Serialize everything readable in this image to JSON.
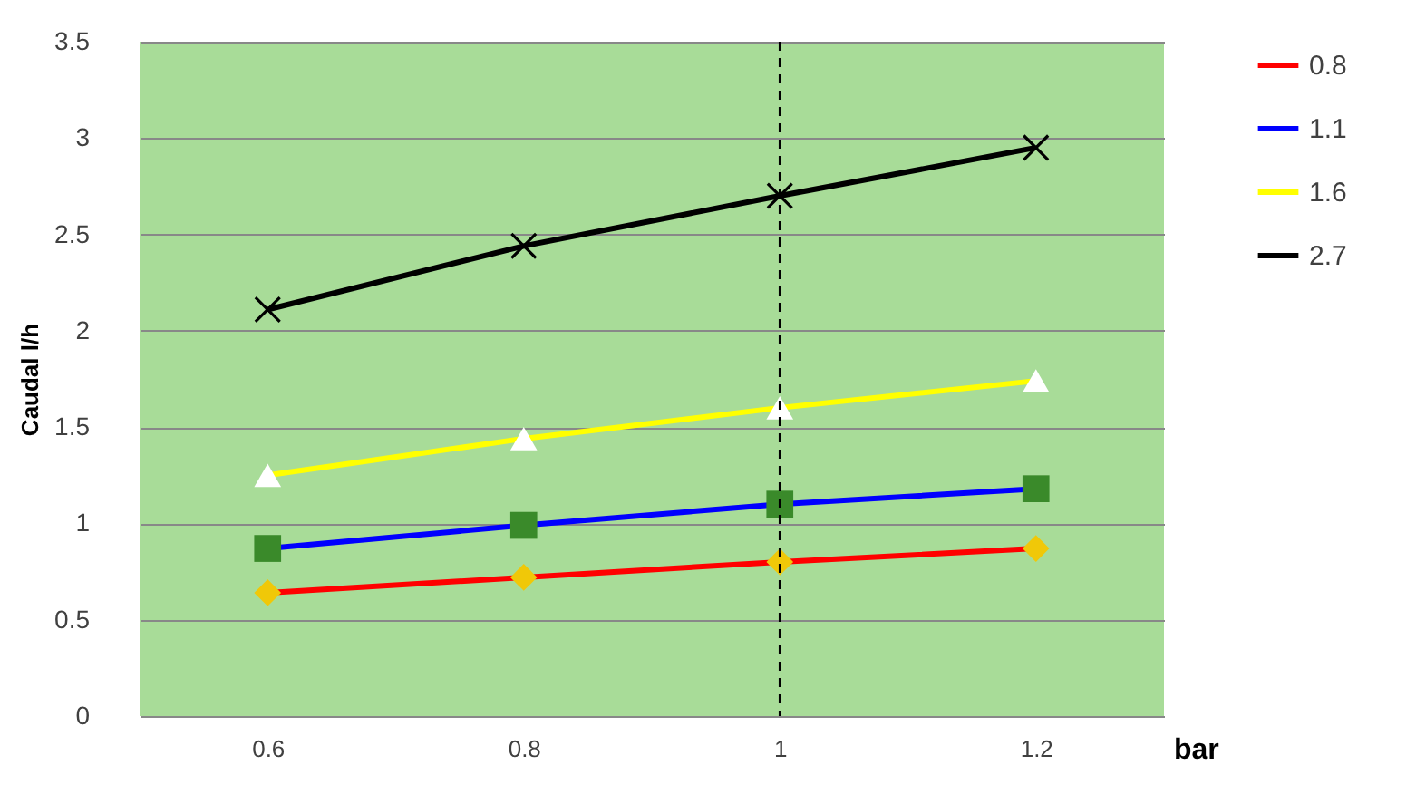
{
  "chart_data": {
    "type": "line",
    "xlabel": "bar",
    "ylabel": "Caudal l/h",
    "x": [
      0.6,
      0.8,
      1,
      1.2
    ],
    "series": [
      {
        "name": "0.8",
        "color": "#ff0000",
        "marker": "diamond",
        "colors": [
          "#f0c808",
          "#f0c808",
          "#f0c808",
          "#f0c808"
        ],
        "values": [
          0.64,
          0.72,
          0.8,
          0.87
        ]
      },
      {
        "name": "1.1",
        "color": "#0000ff",
        "marker": "square",
        "colors": [
          "#3a8a2a",
          "#3a8a2a",
          "#3a8a2a",
          "#3a8a2a"
        ],
        "values": [
          0.87,
          0.99,
          1.1,
          1.18
        ]
      },
      {
        "name": "1.6",
        "color": "#ffff00",
        "marker": "triangle",
        "colors": [
          "#ffffff",
          "#ffffff",
          "#ffffff",
          "#ffffff"
        ],
        "values": [
          1.25,
          1.44,
          1.6,
          1.74
        ]
      },
      {
        "name": "2.7",
        "color": "#000000",
        "marker": "cross",
        "colors": [
          "#000000",
          "#000000",
          "#000000",
          "#000000"
        ],
        "values": [
          2.11,
          2.44,
          2.7,
          2.95
        ]
      }
    ],
    "xlim": [
      0.5,
      1.3
    ],
    "xticks": [
      0.6,
      0.8,
      1,
      1.2
    ],
    "ylim": [
      0,
      3.5
    ],
    "yticks": [
      0,
      0.5,
      1,
      1.5,
      2,
      2.5,
      3,
      3.5
    ],
    "grid": "y",
    "legend": "right",
    "ref_lines": [
      {
        "axis": "x",
        "value": 1,
        "color": "#000000",
        "line_style": "dashed"
      }
    ]
  }
}
